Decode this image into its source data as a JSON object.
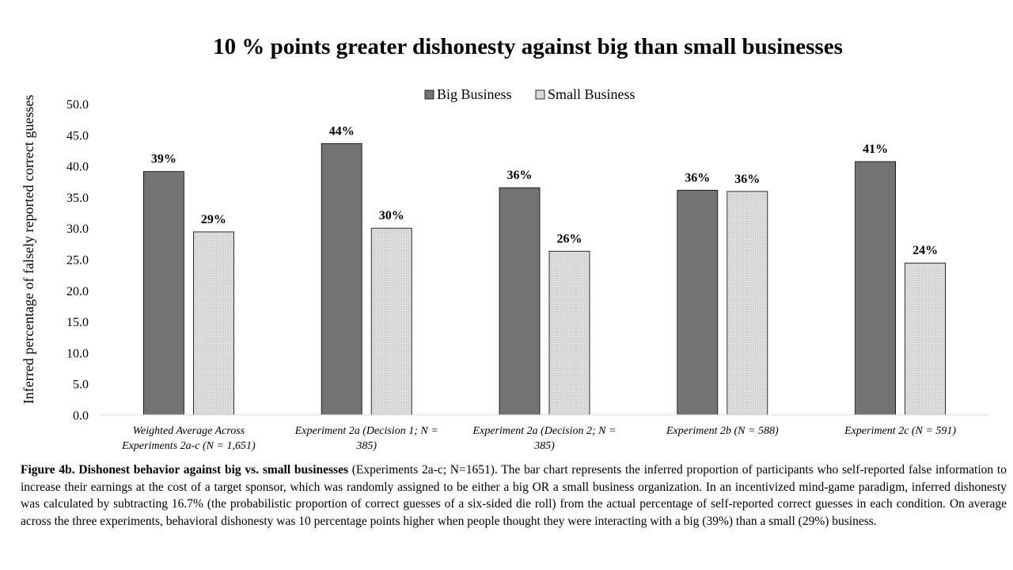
{
  "chart_data": {
    "type": "bar",
    "title": "10 % points greater dishonesty against big than small businesses",
    "ylabel": "Inferred percentage of falsely reported correct guesses",
    "xlabel": "",
    "ylim": [
      0,
      50
    ],
    "yticks": [
      "0.0",
      "5.0",
      "10.0",
      "15.0",
      "20.0",
      "25.0",
      "30.0",
      "35.0",
      "40.0",
      "45.0",
      "50.0"
    ],
    "grid": false,
    "legend_position": "top-center",
    "categories": [
      [
        "Weighted Average Across",
        "Experiments 2a-c (N = 1,651)"
      ],
      [
        "Experiment 2a (Decision 1; N =",
        "385)"
      ],
      [
        "Experiment 2a (Decision 2; N =",
        "385)"
      ],
      [
        "Experiment 2b (N = 588)"
      ],
      [
        "Experiment 2c (N = 591)"
      ]
    ],
    "series": [
      {
        "name": "Big Business",
        "color": "#737373",
        "values": [
          39.1,
          43.6,
          36.5,
          36.1,
          40.7
        ],
        "labels": [
          "39%",
          "44%",
          "36%",
          "36%",
          "41%"
        ]
      },
      {
        "name": "Small Business",
        "color": "#d9d9d9",
        "values": [
          29.4,
          30.0,
          26.3,
          35.9,
          24.4
        ],
        "labels": [
          "29%",
          "30%",
          "26%",
          "36%",
          "24%"
        ]
      }
    ]
  },
  "caption": {
    "bold": "Figure 4b. Dishonest behavior against big vs. small businesses",
    "text": " (Experiments 2a-c; N=1651). The bar chart represents the inferred proportion of participants who self-reported false information to increase their earnings at the cost of a target sponsor, which was randomly assigned to be either a big OR a small business organization. In an incentivized mind-game paradigm, inferred dishonesty was calculated by subtracting 16.7% (the probabilistic proportion of correct guesses of a six-sided die roll) from the actual percentage of self-reported correct guesses in each condition. On average across the three experiments, behavioral dishonesty was 10 percentage points higher when people thought they were interacting with a big (39%) than a small (29%) business."
  }
}
